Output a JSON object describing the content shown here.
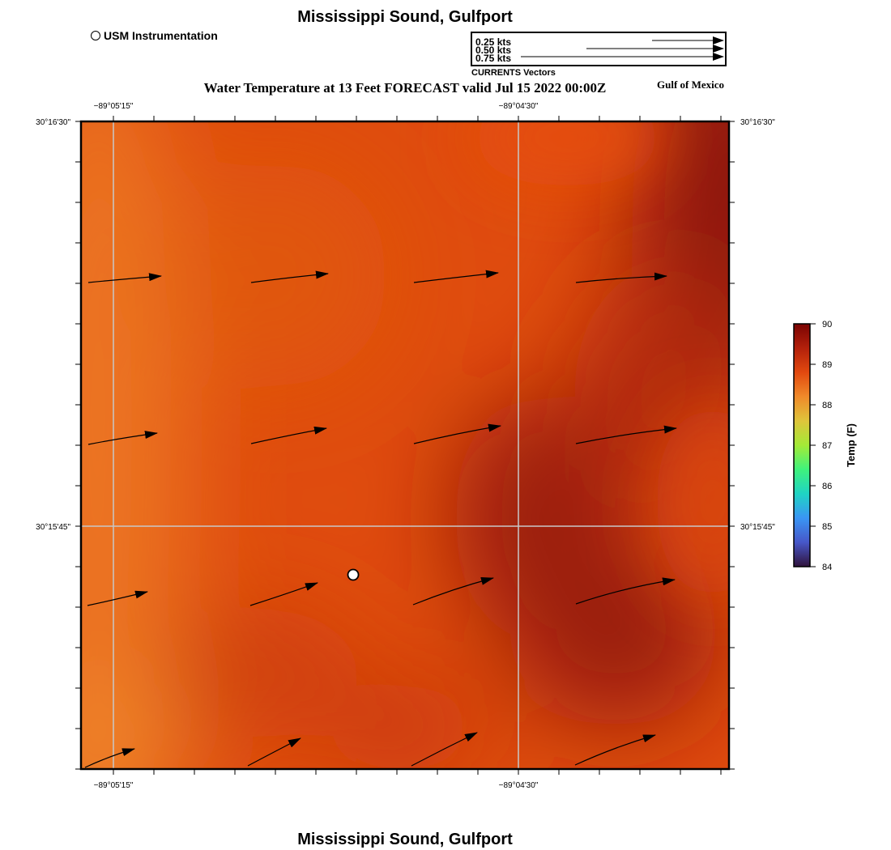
{
  "map": {
    "title_top": "Mississippi Sound, Gulfport",
    "title_bottom": "Mississippi Sound, Gulfport",
    "subtitle": "Water Temperature at 13 Feet FORECAST valid Jul 15 2022 00:00Z",
    "region_label": "Gulf of Mexico",
    "instrument_legend": "USM Instrumentation",
    "vector_legend": {
      "title": "CURRENTS Vectors",
      "keys": [
        "0.25 kts",
        "0.50 kts",
        "0.75 kts"
      ]
    },
    "lon_labels": [
      "−89°05'15\"",
      "−89°04'30\""
    ],
    "lat_labels": [
      "30°16'30\"",
      "30°15'45\""
    ],
    "colorbar": {
      "label": "Temp (F)",
      "ticks": [
        "90",
        "89",
        "88",
        "87",
        "86",
        "85",
        "84"
      ],
      "min": 84,
      "max": 90
    },
    "colors": {
      "field_light": "#ee7f2a",
      "field_mid": "#df4c0e",
      "field_dark": "#8e160a",
      "grid": "#c8c8c8"
    }
  }
}
